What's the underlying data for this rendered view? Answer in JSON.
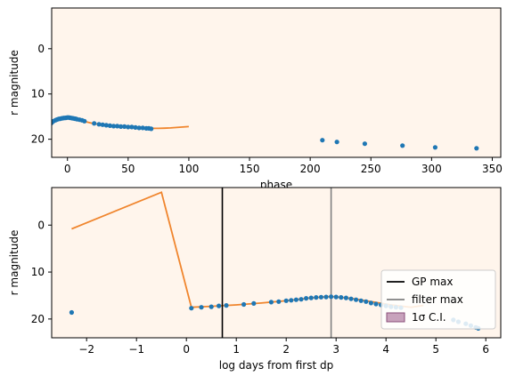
{
  "chart_data": [
    {
      "type": "scatter",
      "title": "",
      "xlabel": "phase",
      "ylabel": "r magnitude",
      "xlim": [
        -13,
        357
      ],
      "ylim": [
        24,
        -9
      ],
      "y_inverted": true,
      "background": "#fff5ec",
      "xticks": [
        0,
        50,
        100,
        150,
        200,
        250,
        300,
        350
      ],
      "yticks": [
        0,
        10,
        20
      ],
      "vlines": [
        {
          "x": -18,
          "color": "#000000"
        }
      ],
      "series": [
        {
          "kind": "line",
          "color": "#f0852d",
          "x": [
            -18,
            -16,
            -14,
            -12,
            -10,
            -8,
            -6,
            -4,
            -2,
            0,
            2,
            5,
            8,
            12,
            16,
            20,
            25,
            30,
            35,
            40,
            45,
            50,
            55,
            60,
            65,
            70,
            75,
            80,
            85,
            90,
            95,
            100
          ],
          "y": [
            18.6,
            17.6,
            16.9,
            16.4,
            16.0,
            15.7,
            15.5,
            15.35,
            15.25,
            15.2,
            15.25,
            15.4,
            15.6,
            15.9,
            16.2,
            16.45,
            16.65,
            16.85,
            17.0,
            17.1,
            17.2,
            17.3,
            17.4,
            17.5,
            17.55,
            17.6,
            17.6,
            17.55,
            17.5,
            17.4,
            17.3,
            17.2
          ]
        },
        {
          "kind": "scatter",
          "color": "#1f77b4",
          "x": [
            -17.5,
            -16.5,
            -15.5,
            -14.5,
            -13.5,
            -12.5,
            -11.5,
            -10,
            -9,
            -8,
            -7,
            -6,
            -5,
            -4,
            -3,
            -2,
            -1,
            0,
            1,
            2,
            3,
            4,
            5,
            6,
            7,
            8,
            10,
            12,
            14,
            22,
            26,
            29,
            32,
            35,
            38,
            41,
            44,
            47,
            50,
            53,
            56,
            59,
            62,
            65,
            67,
            69,
            210,
            222,
            245,
            276,
            303,
            337
          ],
          "y": [
            18.6,
            17.6,
            17.1,
            16.8,
            16.5,
            16.2,
            16.0,
            15.8,
            15.7,
            15.6,
            15.5,
            15.5,
            15.4,
            15.35,
            15.3,
            15.3,
            15.25,
            15.2,
            15.2,
            15.25,
            15.3,
            15.35,
            15.4,
            15.45,
            15.5,
            15.6,
            15.7,
            15.8,
            16.0,
            16.5,
            16.7,
            16.8,
            16.9,
            17.0,
            17.1,
            17.1,
            17.2,
            17.2,
            17.3,
            17.3,
            17.4,
            17.5,
            17.5,
            17.6,
            17.6,
            17.7,
            20.2,
            20.6,
            21.0,
            21.4,
            21.8,
            22.0
          ]
        }
      ]
    },
    {
      "type": "scatter",
      "title": "",
      "xlabel": "log days from first dp",
      "ylabel": "r magnitude",
      "xlim": [
        -2.7,
        6.3
      ],
      "ylim": [
        24,
        -8
      ],
      "y_inverted": true,
      "background": "#fff5ec",
      "xticks": [
        -2,
        -1,
        0,
        1,
        2,
        3,
        4,
        5,
        6
      ],
      "yticks": [
        0,
        10,
        20
      ],
      "legend_position": "lower-right",
      "legend": [
        {
          "label": "GP max",
          "kind": "line",
          "color": "#000000"
        },
        {
          "label": "filter max",
          "kind": "line",
          "color": "#808080"
        },
        {
          "label": "1σ C.I.",
          "kind": "patch",
          "color": "#b07aa1"
        }
      ],
      "vlines": [
        {
          "x": 0.72,
          "color": "#000000"
        },
        {
          "x": 2.9,
          "color": "#808080"
        }
      ],
      "series": [
        {
          "kind": "line",
          "color": "#f0852d",
          "x": [
            -2.3,
            -0.5,
            0.1,
            0.5,
            1.0,
            1.5,
            2.0,
            2.5,
            2.9,
            3.3,
            3.7,
            4.1,
            4.5,
            4.75
          ],
          "y": [
            0.8,
            -7.0,
            17.5,
            17.3,
            17.0,
            16.6,
            16.1,
            15.5,
            15.2,
            15.6,
            16.3,
            17.0,
            17.5,
            17.1
          ]
        },
        {
          "kind": "scatter",
          "color": "#1f77b4",
          "x": [
            -2.3,
            0.1,
            0.3,
            0.5,
            0.65,
            0.8,
            1.15,
            1.35,
            1.7,
            1.85,
            2.0,
            2.1,
            2.2,
            2.3,
            2.4,
            2.5,
            2.6,
            2.7,
            2.8,
            2.9,
            3.0,
            3.1,
            3.2,
            3.3,
            3.4,
            3.5,
            3.6,
            3.7,
            3.8,
            3.9,
            4.0,
            4.1,
            4.2,
            4.3,
            5.35,
            5.45,
            5.6,
            5.7,
            5.8,
            5.85
          ],
          "y": [
            18.6,
            17.7,
            17.5,
            17.4,
            17.2,
            17.1,
            16.9,
            16.7,
            16.4,
            16.3,
            16.1,
            16.0,
            15.9,
            15.8,
            15.6,
            15.5,
            15.4,
            15.35,
            15.3,
            15.25,
            15.3,
            15.4,
            15.5,
            15.7,
            15.9,
            16.1,
            16.3,
            16.6,
            16.8,
            17.0,
            17.2,
            17.4,
            17.5,
            17.6,
            20.2,
            20.6,
            21.0,
            21.4,
            21.8,
            22.0
          ]
        }
      ]
    }
  ]
}
